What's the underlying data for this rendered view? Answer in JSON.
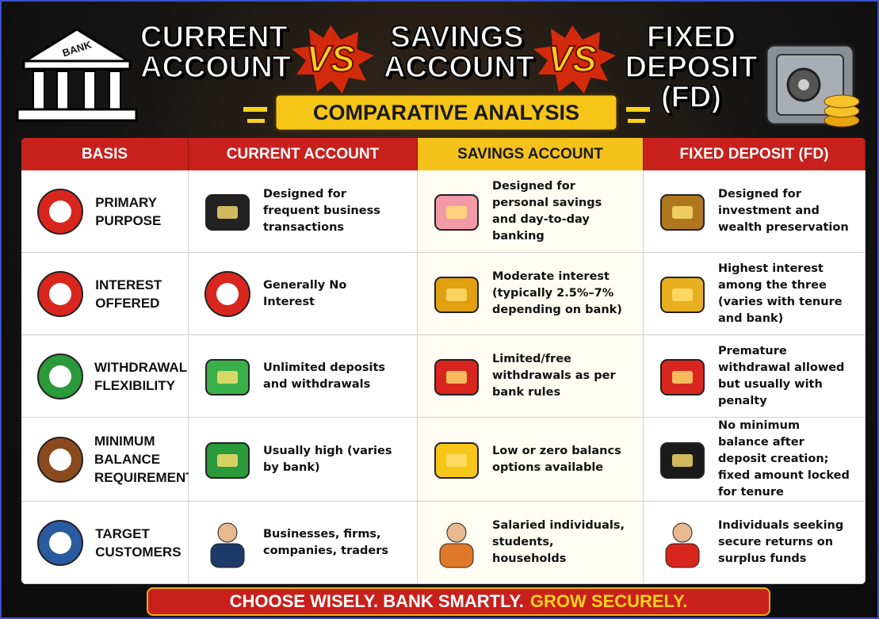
{
  "header": {
    "bank_sign": "BANK",
    "title_parts": [
      "CURRENT ACCOUNT",
      "VS",
      "SAVINGS ACCOUNT",
      "VS",
      "FIXED DEPOSIT (FD)"
    ],
    "subtitle": "COMPARATIVE ANALYSIS"
  },
  "table": {
    "headers": [
      "BASIS",
      "CURRENT ACCOUNT",
      "SAVINGS ACCOUNT",
      "FIXED DEPOSIT (FD)"
    ],
    "rows": [
      [
        "PRIMARY PURPOSE",
        "Designed for frequent business transactions",
        "Designed for personal savings and day-to-day banking",
        "Designed for investment and wealth preservation"
      ],
      [
        "INTEREST OFFERED",
        "Generally No Interest",
        "Moderate interest (typically 2.5%–7% depending on bank)",
        "Highest interest among the three (varies with tenure and bank)"
      ],
      [
        "WITHDRAWAL FLEXIBILITY",
        "Unlimited deposits and withdrawals",
        "Limited/free withdrawals as per bank rules",
        "Premature withdrawal allowed but usually with penalty"
      ],
      [
        "MINIMUM BALANCE REQUIREMENT",
        "Usually high (varies by bank)",
        "Low or zero balancs options available",
        "No minimum balance after deposit creation; fixed amount locked for tenure"
      ],
      [
        "TARGET CUSTOMERS",
        "Businesses, firms, companies, traders",
        "Salaried individuals, students, households",
        "Individuals seeking secure returns on surplus funds"
      ]
    ]
  },
  "footer": {
    "parts": [
      "CHOOSE WISELY. BANK SMARTLY.",
      "GROW SECURELY."
    ]
  }
}
